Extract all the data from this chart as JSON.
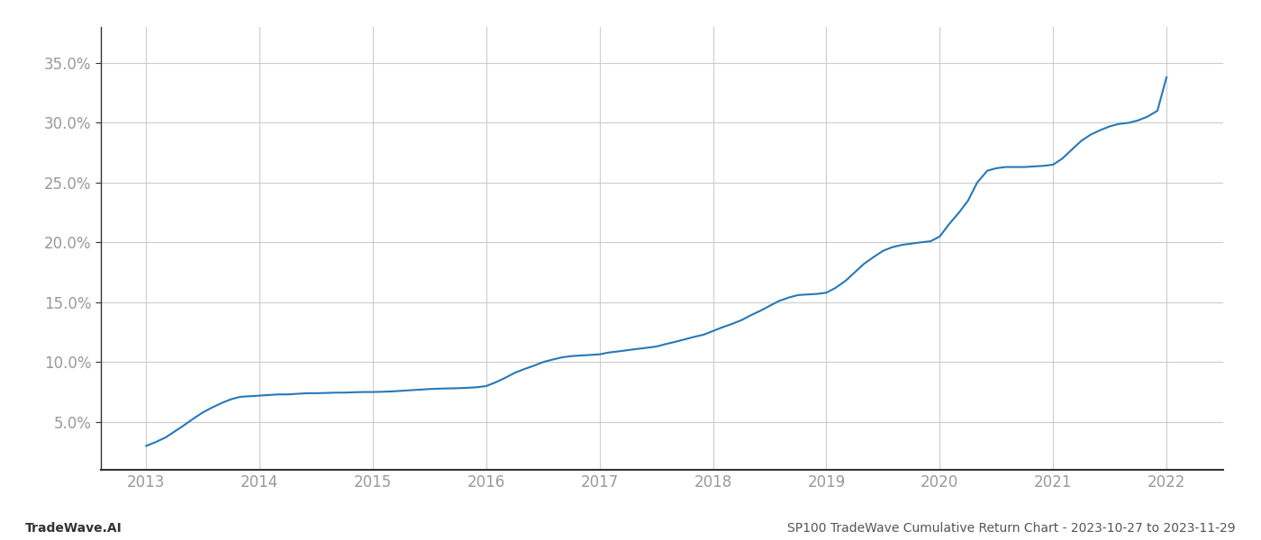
{
  "x_years": [
    2013.0,
    2013.08,
    2013.17,
    2013.25,
    2013.33,
    2013.42,
    2013.5,
    2013.58,
    2013.67,
    2013.75,
    2013.83,
    2013.92,
    2014.0,
    2014.08,
    2014.17,
    2014.25,
    2014.33,
    2014.42,
    2014.5,
    2014.58,
    2014.67,
    2014.75,
    2014.83,
    2014.92,
    2015.0,
    2015.08,
    2015.17,
    2015.25,
    2015.33,
    2015.42,
    2015.5,
    2015.58,
    2015.67,
    2015.75,
    2015.83,
    2015.92,
    2016.0,
    2016.08,
    2016.17,
    2016.25,
    2016.33,
    2016.42,
    2016.5,
    2016.58,
    2016.67,
    2016.75,
    2016.83,
    2016.92,
    2017.0,
    2017.08,
    2017.17,
    2017.25,
    2017.33,
    2017.42,
    2017.5,
    2017.58,
    2017.67,
    2017.75,
    2017.83,
    2017.92,
    2018.0,
    2018.08,
    2018.17,
    2018.25,
    2018.33,
    2018.42,
    2018.5,
    2018.58,
    2018.67,
    2018.75,
    2018.83,
    2018.92,
    2019.0,
    2019.08,
    2019.17,
    2019.25,
    2019.33,
    2019.42,
    2019.5,
    2019.58,
    2019.67,
    2019.75,
    2019.83,
    2019.92,
    2020.0,
    2020.08,
    2020.17,
    2020.25,
    2020.33,
    2020.42,
    2020.5,
    2020.58,
    2020.67,
    2020.75,
    2020.83,
    2020.92,
    2021.0,
    2021.08,
    2021.17,
    2021.25,
    2021.33,
    2021.42,
    2021.5,
    2021.58,
    2021.67,
    2021.75,
    2021.83,
    2021.92,
    2022.0
  ],
  "y_values": [
    3.0,
    3.3,
    3.7,
    4.2,
    4.7,
    5.3,
    5.8,
    6.2,
    6.6,
    6.9,
    7.1,
    7.15,
    7.2,
    7.25,
    7.3,
    7.3,
    7.35,
    7.4,
    7.4,
    7.42,
    7.45,
    7.45,
    7.48,
    7.5,
    7.5,
    7.52,
    7.55,
    7.6,
    7.65,
    7.7,
    7.75,
    7.78,
    7.8,
    7.82,
    7.85,
    7.9,
    8.0,
    8.3,
    8.7,
    9.1,
    9.4,
    9.7,
    10.0,
    10.2,
    10.4,
    10.5,
    10.55,
    10.6,
    10.65,
    10.8,
    10.9,
    11.0,
    11.1,
    11.2,
    11.3,
    11.5,
    11.7,
    11.9,
    12.1,
    12.3,
    12.6,
    12.9,
    13.2,
    13.5,
    13.9,
    14.3,
    14.7,
    15.1,
    15.4,
    15.6,
    15.65,
    15.7,
    15.8,
    16.2,
    16.8,
    17.5,
    18.2,
    18.8,
    19.3,
    19.6,
    19.8,
    19.9,
    20.0,
    20.1,
    20.5,
    21.5,
    22.5,
    23.5,
    25.0,
    26.0,
    26.2,
    26.3,
    26.3,
    26.3,
    26.35,
    26.4,
    26.5,
    27.0,
    27.8,
    28.5,
    29.0,
    29.4,
    29.7,
    29.9,
    30.0,
    30.2,
    30.5,
    31.0,
    33.8
  ],
  "line_color": "#2878b8",
  "line_width": 1.5,
  "background_color": "#ffffff",
  "grid_color": "#cccccc",
  "footer_left": "TradeWave.AI",
  "footer_right": "SP100 TradeWave Cumulative Return Chart - 2023-10-27 to 2023-11-29",
  "x_tick_labels": [
    "2013",
    "2014",
    "2015",
    "2016",
    "2017",
    "2018",
    "2019",
    "2020",
    "2021",
    "2022"
  ],
  "x_tick_positions": [
    2013,
    2014,
    2015,
    2016,
    2017,
    2018,
    2019,
    2020,
    2021,
    2022
  ],
  "y_ticks": [
    5.0,
    10.0,
    15.0,
    20.0,
    25.0,
    30.0,
    35.0
  ],
  "ylim": [
    1.0,
    38.0
  ],
  "xlim": [
    2012.6,
    2022.5
  ],
  "tick_label_fontsize": 12,
  "footer_fontsize": 10,
  "axis_label_color": "#999999",
  "spine_color": "#333333"
}
